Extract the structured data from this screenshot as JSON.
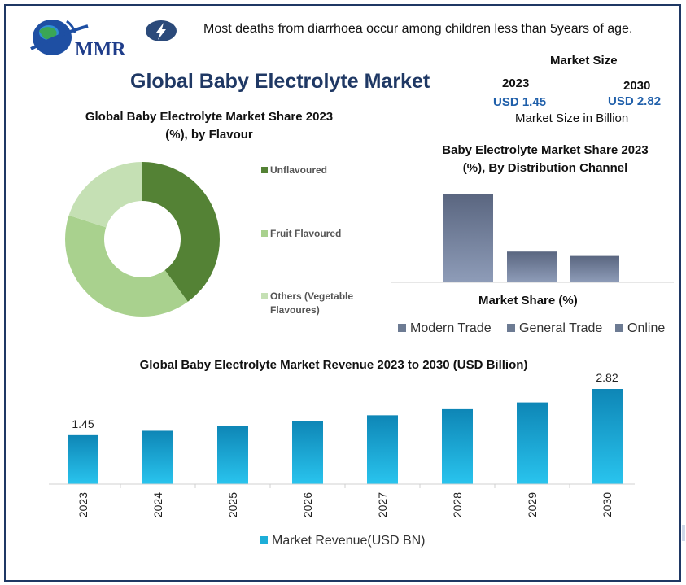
{
  "header": {
    "logo_text": "MMR",
    "fact": "Most deaths from diarrhoea occur among children less than 5years of age.",
    "main_title": "Global Baby Electrolyte Market"
  },
  "market_size": {
    "title": "Market Size",
    "year_start": "2023",
    "year_end": "2030",
    "value_start": "USD 1.45",
    "value_end": "USD 2.82",
    "unit": "Market Size in Billion"
  },
  "colors": {
    "frame": "#1f3864",
    "title": "#1f3864",
    "accent_value": "#1f5faa",
    "unflavoured": "#548235",
    "fruit": "#a9d18e",
    "others": "#c5e0b4",
    "dist_bar": "#6d7b93",
    "rev_bar_top": "#0e86b6",
    "rev_bar_bottom": "#29c4ee"
  },
  "chart_data": [
    {
      "type": "pie",
      "title": "Global Baby Electrolyte Market Share 2023 (%), by Flavour",
      "title_line1": "Global Baby Electrolyte Market Share 2023",
      "title_line2": "(%), by Flavour",
      "labels": [
        "Unflavoured",
        "Fruit Flavoured",
        "Others (Vegetable Flavoures)"
      ],
      "label_lines": [
        [
          "Unflavoured"
        ],
        [
          "Fruit Flavoured"
        ],
        [
          "Others (Vegetable",
          "Flavoures)"
        ]
      ],
      "values": [
        40,
        40,
        20
      ],
      "legend": "right"
    },
    {
      "type": "bar",
      "title": "Baby Electrolyte Market Share 2023 (%), By Distribution Channel",
      "title_line1": "Baby Electrolyte Market Share 2023",
      "title_line2": "(%), By Distribution Channel",
      "categories": [
        "Modern Trade",
        "General Trade",
        "Online"
      ],
      "values": [
        60,
        21,
        18
      ],
      "xlabel": "Market Share (%)",
      "ylim": [
        0,
        65
      ],
      "legend": "bottom"
    },
    {
      "type": "bar",
      "title": "Global Baby Electrolyte Market Revenue 2023 to 2030 (USD Billion)",
      "categories": [
        "2023",
        "2024",
        "2025",
        "2026",
        "2027",
        "2028",
        "2029",
        "2030"
      ],
      "values": [
        1.45,
        1.58,
        1.72,
        1.87,
        2.04,
        2.22,
        2.42,
        2.82
      ],
      "data_labels": [
        "1.45",
        "",
        "",
        "",
        "",
        "",
        "",
        "2.82"
      ],
      "legend_label": "Market Revenue(USD BN)",
      "ylim": [
        0,
        3.4
      ],
      "legend": "bottom"
    }
  ]
}
